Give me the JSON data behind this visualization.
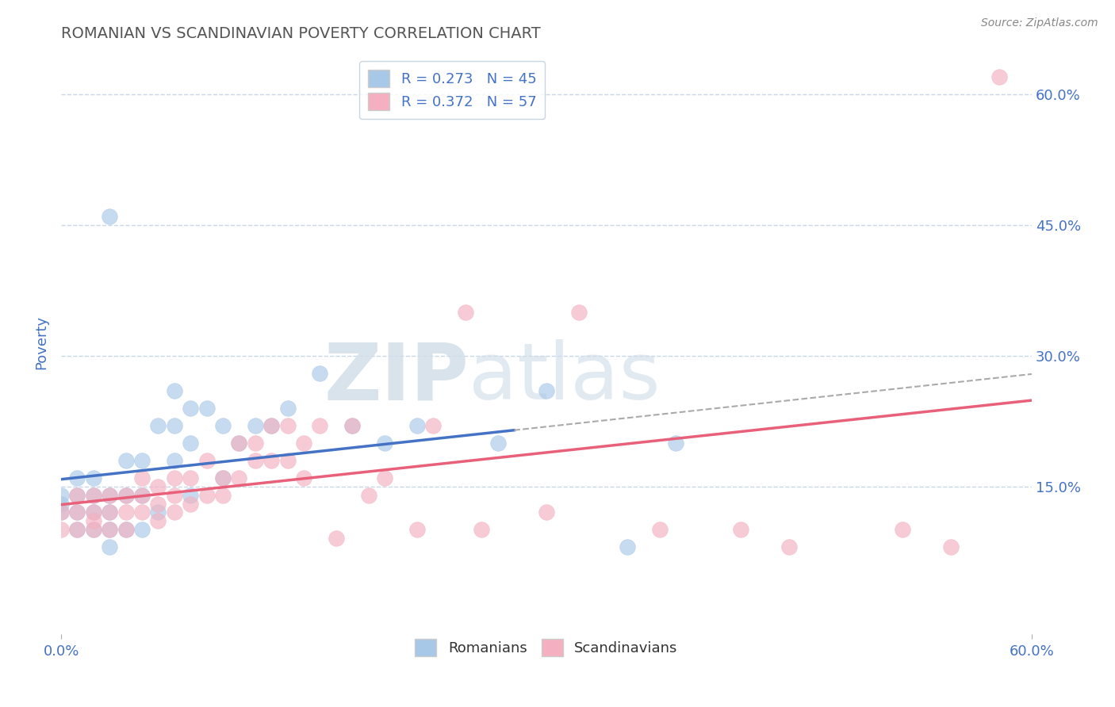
{
  "title": "ROMANIAN VS SCANDINAVIAN POVERTY CORRELATION CHART",
  "source": "Source: ZipAtlas.com",
  "ylabel": "Poverty",
  "xlim": [
    0.0,
    0.6
  ],
  "ylim": [
    -0.02,
    0.65
  ],
  "yticks": [
    0.15,
    0.3,
    0.45,
    0.6
  ],
  "ytick_labels": [
    "15.0%",
    "30.0%",
    "45.0%",
    "60.0%"
  ],
  "romanians_R": 0.273,
  "romanians_N": 45,
  "scandinavians_R": 0.372,
  "scandinavians_N": 57,
  "blue_color": "#a8c8e8",
  "pink_color": "#f4b0c0",
  "trend_blue": "#4472c4",
  "trend_pink": "#e8607a",
  "trend_gray_dashed": "#aaaaaa",
  "axis_label_color": "#4472c4",
  "title_color": "#555555",
  "grid_color": "#c8d8e8",
  "watermark_color": "#d0dde8",
  "background_color": "#ffffff",
  "romanians_x": [
    0.0,
    0.0,
    0.0,
    0.01,
    0.01,
    0.01,
    0.01,
    0.02,
    0.02,
    0.02,
    0.02,
    0.03,
    0.03,
    0.03,
    0.03,
    0.03,
    0.04,
    0.04,
    0.04,
    0.05,
    0.05,
    0.05,
    0.06,
    0.06,
    0.07,
    0.07,
    0.07,
    0.08,
    0.08,
    0.08,
    0.09,
    0.1,
    0.1,
    0.11,
    0.12,
    0.13,
    0.14,
    0.16,
    0.18,
    0.2,
    0.22,
    0.27,
    0.3,
    0.35,
    0.38
  ],
  "romanians_y": [
    0.12,
    0.13,
    0.14,
    0.1,
    0.12,
    0.14,
    0.16,
    0.1,
    0.12,
    0.14,
    0.16,
    0.08,
    0.1,
    0.12,
    0.14,
    0.46,
    0.1,
    0.14,
    0.18,
    0.1,
    0.14,
    0.18,
    0.12,
    0.22,
    0.18,
    0.22,
    0.26,
    0.14,
    0.2,
    0.24,
    0.24,
    0.16,
    0.22,
    0.2,
    0.22,
    0.22,
    0.24,
    0.28,
    0.22,
    0.2,
    0.22,
    0.2,
    0.26,
    0.08,
    0.2
  ],
  "scandinavians_x": [
    0.0,
    0.0,
    0.01,
    0.01,
    0.01,
    0.02,
    0.02,
    0.02,
    0.02,
    0.03,
    0.03,
    0.03,
    0.04,
    0.04,
    0.04,
    0.05,
    0.05,
    0.05,
    0.06,
    0.06,
    0.06,
    0.07,
    0.07,
    0.07,
    0.08,
    0.08,
    0.09,
    0.09,
    0.1,
    0.1,
    0.11,
    0.11,
    0.12,
    0.12,
    0.13,
    0.13,
    0.14,
    0.14,
    0.15,
    0.15,
    0.16,
    0.17,
    0.18,
    0.19,
    0.2,
    0.22,
    0.23,
    0.25,
    0.26,
    0.3,
    0.32,
    0.37,
    0.42,
    0.45,
    0.52,
    0.55,
    0.58
  ],
  "scandinavians_y": [
    0.1,
    0.12,
    0.1,
    0.12,
    0.14,
    0.1,
    0.11,
    0.12,
    0.14,
    0.1,
    0.12,
    0.14,
    0.1,
    0.12,
    0.14,
    0.12,
    0.14,
    0.16,
    0.11,
    0.13,
    0.15,
    0.12,
    0.14,
    0.16,
    0.13,
    0.16,
    0.14,
    0.18,
    0.14,
    0.16,
    0.16,
    0.2,
    0.18,
    0.2,
    0.18,
    0.22,
    0.18,
    0.22,
    0.16,
    0.2,
    0.22,
    0.09,
    0.22,
    0.14,
    0.16,
    0.1,
    0.22,
    0.35,
    0.1,
    0.12,
    0.35,
    0.1,
    0.1,
    0.08,
    0.1,
    0.08,
    0.62
  ]
}
